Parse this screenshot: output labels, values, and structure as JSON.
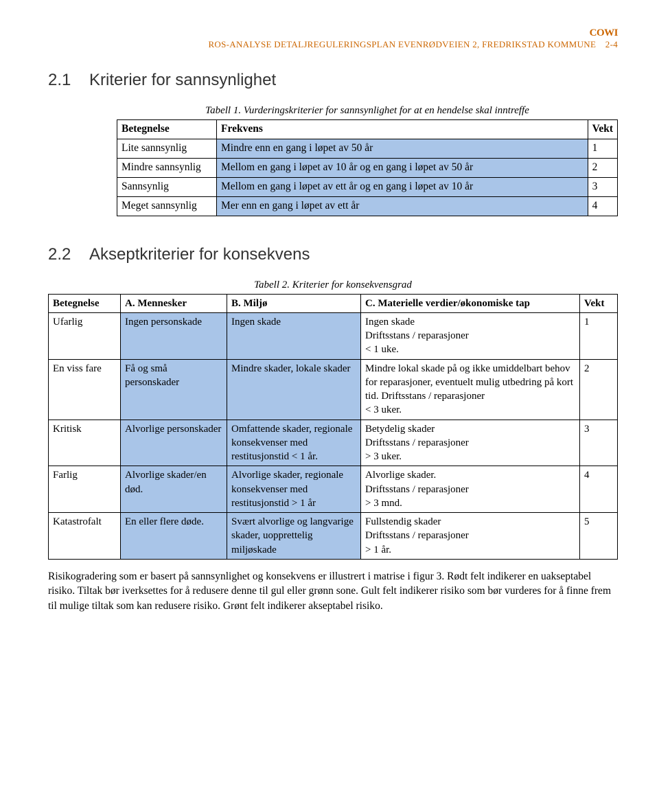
{
  "header": {
    "doc_title": "ROS-ANALYSE DETALJREGULERINGSPLAN EVENRØDVEIEN 2, FREDRIKSTAD KOMMUNE",
    "page_num": "2-4",
    "logo": "COWI"
  },
  "section1": {
    "num": "2.1",
    "title": "Kriterier for sannsynlighet",
    "table_caption_label": "Tabell 1.",
    "table_caption": "Vurderingskriterier for sannsynlighet for at en hendelse skal inntreffe",
    "headers": {
      "c1": "Betegnelse",
      "c2": "Frekvens",
      "c3": "Vekt"
    },
    "rows": [
      {
        "c1": "Lite sannsynlig",
        "c2": "Mindre enn en gang i løpet av 50 år",
        "c3": "1"
      },
      {
        "c1": "Mindre sannsynlig",
        "c2": "Mellom en gang i løpet av 10 år og en gang i løpet av 50 år",
        "c3": "2"
      },
      {
        "c1": "Sannsynlig",
        "c2": "Mellom en gang i løpet av ett år og en gang i løpet av 10 år",
        "c3": "3"
      },
      {
        "c1": "Meget sannsynlig",
        "c2": "Mer enn en gang i løpet av ett år",
        "c3": "4"
      }
    ]
  },
  "section2": {
    "num": "2.2",
    "title": "Akseptkriterier for konsekvens",
    "table_caption_label": "Tabell 2.",
    "table_caption_text": "Kriterier for konsekvensgrad",
    "headers": {
      "c1": "Betegnelse",
      "c2": "A. Mennesker",
      "c3": "B. Miljø",
      "c4": "C. Materielle verdier/økonomiske tap",
      "c5": "Vekt"
    },
    "rows": [
      {
        "c1": "Ufarlig",
        "c2": "Ingen personskade",
        "c3": "Ingen skade",
        "c4": "Ingen skade\nDriftsstans / reparasjoner\n< 1 uke.",
        "c5": "1"
      },
      {
        "c1": "En viss fare",
        "c2": "Få og små personskader",
        "c3": "Mindre skader, lokale skader",
        "c4": "Mindre lokal skade på og ikke umiddelbart behov for reparasjoner, eventuelt mulig utbedring på kort tid. Driftsstans / reparasjoner\n < 3 uker.",
        "c5": "2"
      },
      {
        "c1": "Kritisk",
        "c2": "Alvorlige personskader",
        "c3": "Omfattende skader, regionale konsekvenser med restitusjonstid < 1 år.",
        "c4": "Betydelig skader\nDriftsstans / reparasjoner\n> 3 uker.",
        "c5": "3"
      },
      {
        "c1": "Farlig",
        "c2": "Alvorlige skader/en død.",
        "c3": "Alvorlige skader, regionale konsekvenser med restitusjonstid > 1 år",
        "c4": "Alvorlige skader.\nDriftsstans / reparasjoner\n> 3 mnd.",
        "c5": "4"
      },
      {
        "c1": "Katastrofalt",
        "c2": "En eller flere døde.",
        "c3": "Svært alvorlige og langvarige skader, uopprettelig miljøskade",
        "c4": "Fullstendig skader\nDriftsstans / reparasjoner\n> 1 år.",
        "c5": "5"
      }
    ]
  },
  "paragraph": "Risikogradering som er basert på sannsynlighet og konsekvens er illustrert i matrise i figur 3. Rødt felt indikerer en uakseptabel risiko. Tiltak bør iverksettes for å redusere denne til gul eller grønn sone. Gult felt indikerer risiko som bør vurderes for å finne frem til mulige tiltak som kan redusere risiko. Grønt felt indikerer akseptabel risiko.",
  "colors": {
    "shade": "#a9c5e8",
    "header_orange": "#cc6600",
    "text": "#000000",
    "heading_grey": "#333333"
  }
}
